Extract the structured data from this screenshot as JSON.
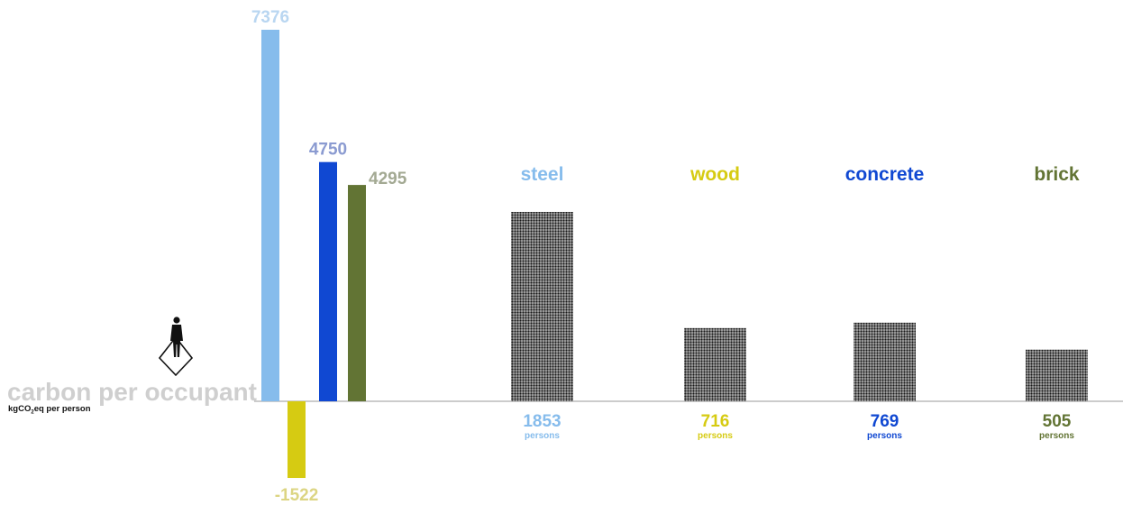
{
  "chart_data": [
    {
      "type": "bar",
      "title": "carbon per occupant",
      "ylabel": "kgCO₂eq per person",
      "categories": [
        "steel",
        "wood",
        "concrete",
        "brick"
      ],
      "values": [
        7376,
        -1522,
        4750,
        4295
      ],
      "value_labels": [
        "7376",
        "-1522",
        "4750",
        "4295"
      ],
      "colors": [
        "#86bcec",
        "#d6cb12",
        "#1048d2",
        "#627434"
      ],
      "label_colors": [
        "#b9d6f1",
        "#dcd583",
        "#8b9bd1",
        "#a3a993"
      ]
    },
    {
      "type": "bar",
      "categories": [
        "steel",
        "wood",
        "concrete",
        "brick"
      ],
      "values": [
        1853,
        716,
        769,
        505
      ],
      "value_labels": [
        "1853",
        "716",
        "769",
        "505"
      ],
      "unit_label": "persons",
      "colors": [
        "#86bcec",
        "#d6cb12",
        "#1048d2",
        "#627434"
      ]
    }
  ],
  "icon": "person-standing-on-diamond-icon"
}
